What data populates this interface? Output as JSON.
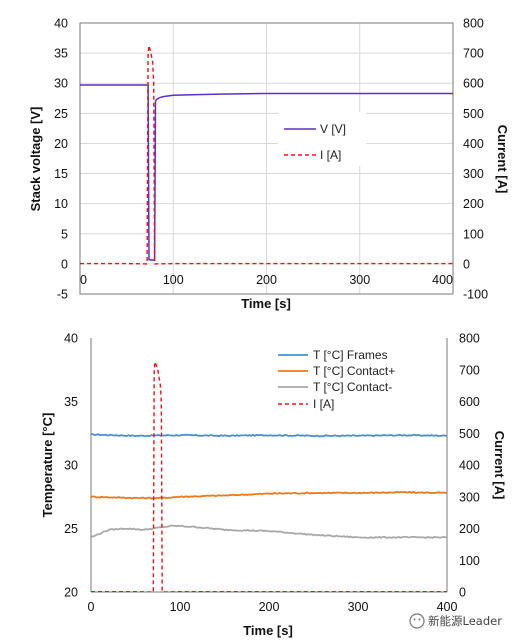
{
  "chart_data": [
    {
      "type": "line",
      "xlabel": "Time [s]",
      "ylabel": "Stack voltage [V]",
      "y2label": "Current [A]",
      "xlim": [
        0,
        400
      ],
      "ylim": [
        -5,
        40
      ],
      "y2lim": [
        -100,
        800
      ],
      "x_ticks": [
        "0",
        "100",
        "200",
        "300",
        "400"
      ],
      "y_ticks": [
        "-5",
        "0",
        "5",
        "10",
        "15",
        "20",
        "25",
        "30",
        "35",
        "40"
      ],
      "y2_ticks": [
        "-100",
        "0",
        "100",
        "200",
        "300",
        "400",
        "500",
        "600",
        "700",
        "800"
      ],
      "grid": true,
      "legend": "center-right",
      "series": [
        {
          "name": "V [V]",
          "axis": "left",
          "color": "#5b2fc9",
          "style": "solid",
          "x": [
            0,
            50,
            73,
            74,
            75,
            80,
            81,
            82,
            85,
            90,
            100,
            120,
            150,
            200,
            250,
            300,
            350,
            400
          ],
          "y": [
            29.7,
            29.7,
            29.7,
            0.7,
            0.7,
            0.6,
            27.0,
            27.3,
            27.6,
            27.8,
            28.0,
            28.1,
            28.2,
            28.3,
            28.3,
            28.3,
            28.3,
            28.3
          ]
        },
        {
          "name": "I [A]",
          "axis": "right",
          "color": "#e8141b",
          "style": "dashed",
          "x": [
            0,
            50,
            72,
            73,
            74,
            76,
            78,
            79,
            80,
            100,
            200,
            300,
            400
          ],
          "y": [
            1,
            1,
            0,
            700,
            725,
            700,
            670,
            600,
            0,
            1,
            1,
            1,
            1
          ]
        }
      ]
    },
    {
      "type": "line",
      "xlabel": "Time [s]",
      "ylabel": "Temperature [°C]",
      "y2label": "Current [A]",
      "xlim": [
        0,
        400
      ],
      "ylim": [
        20,
        40
      ],
      "y2lim": [
        0,
        800
      ],
      "x_ticks": [
        "0",
        "100",
        "200",
        "300",
        "400"
      ],
      "y_ticks": [
        "20",
        "25",
        "30",
        "35",
        "40"
      ],
      "y2_ticks": [
        "0",
        "100",
        "200",
        "300",
        "400",
        "500",
        "600",
        "700",
        "800"
      ],
      "grid": false,
      "legend": "top-right",
      "series": [
        {
          "name": "T [°C] Frames",
          "axis": "left",
          "color": "#4a90d0",
          "style": "solid",
          "x": [
            0,
            50,
            100,
            150,
            200,
            250,
            300,
            350,
            400
          ],
          "y": [
            32.4,
            32.3,
            32.35,
            32.3,
            32.35,
            32.3,
            32.3,
            32.35,
            32.3
          ]
        },
        {
          "name": "T [°C] Contact+",
          "axis": "left",
          "color": "#ec7a1c",
          "style": "solid",
          "x": [
            0,
            50,
            80,
            100,
            150,
            200,
            250,
            300,
            350,
            400
          ],
          "y": [
            27.5,
            27.4,
            27.4,
            27.5,
            27.6,
            27.75,
            27.8,
            27.8,
            27.85,
            27.8
          ]
        },
        {
          "name": "T [°C] Contact-",
          "axis": "left",
          "color": "#a8a8a8",
          "style": "solid",
          "x": [
            0,
            10,
            20,
            40,
            60,
            80,
            90,
            100,
            120,
            150,
            200,
            250,
            300,
            350,
            400
          ],
          "y": [
            24.3,
            24.6,
            24.9,
            25.0,
            24.9,
            25.1,
            25.2,
            25.2,
            25.1,
            24.9,
            24.8,
            24.5,
            24.3,
            24.3,
            24.3
          ]
        },
        {
          "name": "I [A]",
          "axis": "right",
          "color": "#e8141b",
          "style": "dashed",
          "x": [
            0,
            50,
            70,
            71,
            72,
            75,
            78,
            79,
            80,
            100,
            200,
            300,
            400
          ],
          "y": [
            1,
            1,
            0,
            700,
            725,
            700,
            650,
            600,
            0,
            1,
            1,
            1,
            1
          ]
        }
      ]
    }
  ],
  "watermark": "新能源Leader"
}
